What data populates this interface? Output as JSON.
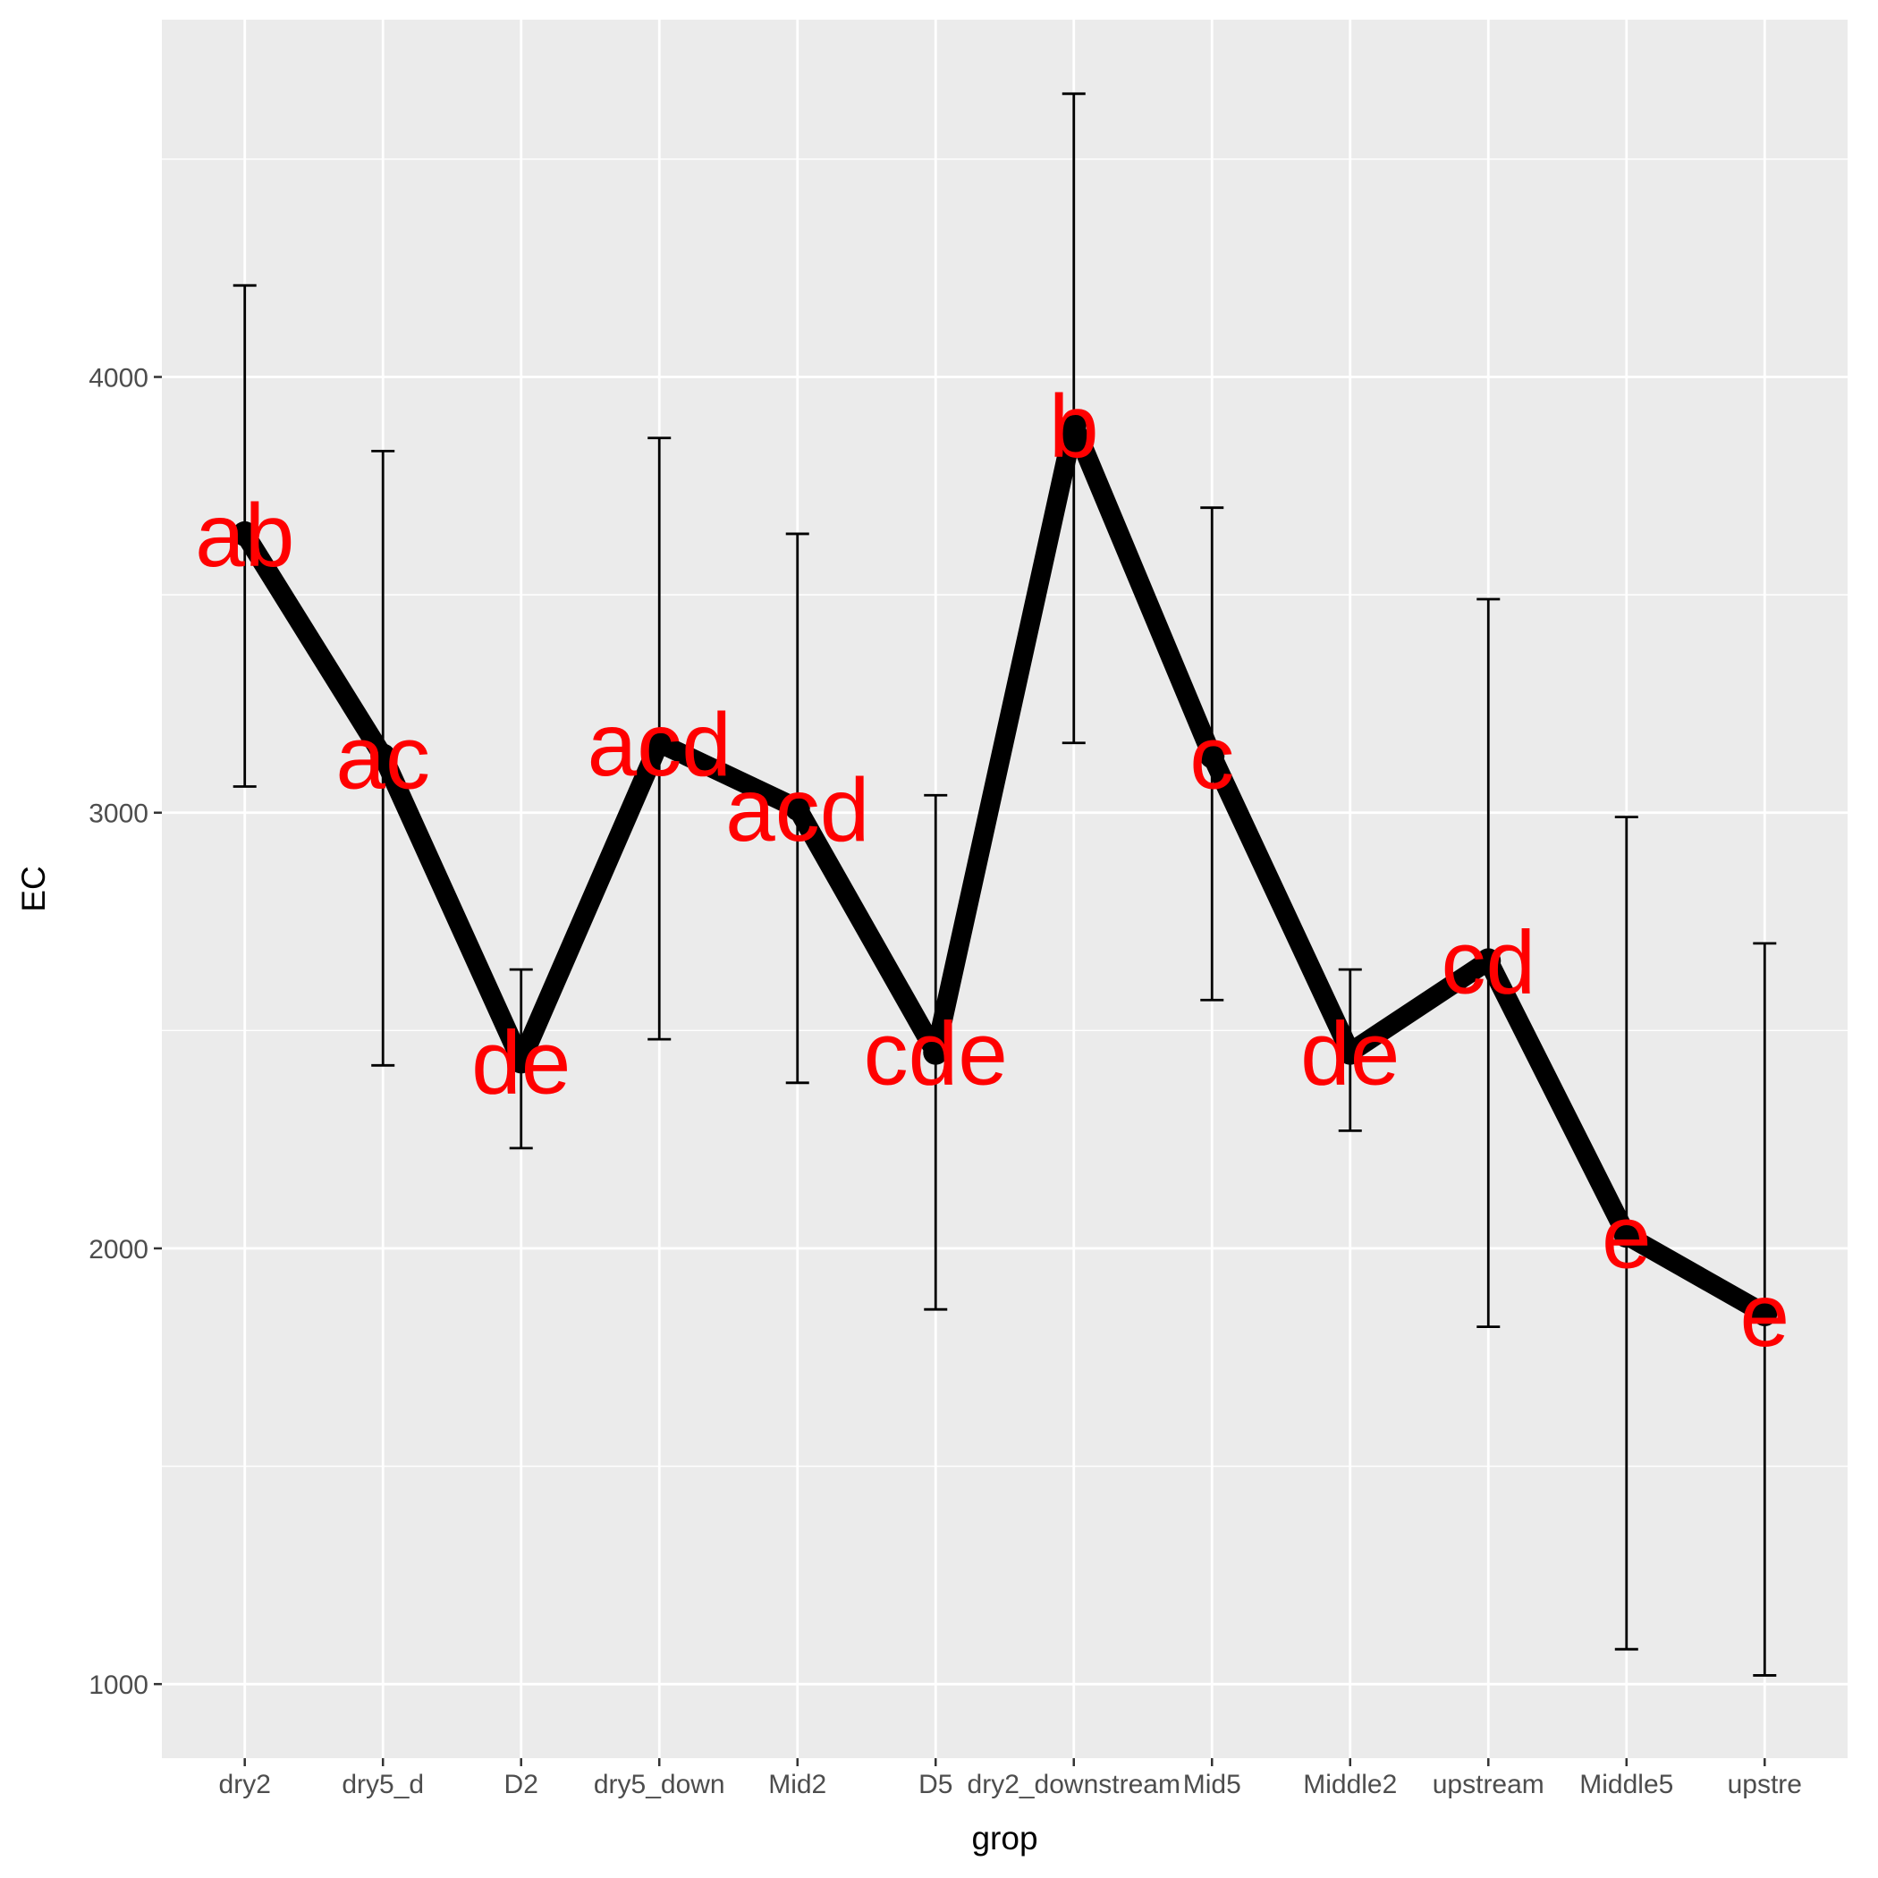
{
  "chart_data": {
    "type": "line",
    "title": "",
    "xlabel": "grop",
    "ylabel": "EC",
    "categories": [
      "dry2",
      "dry5_d",
      "D2",
      "dry5_down",
      "Mid2",
      "D5",
      "dry2_downstream",
      "Mid5",
      "Middle2",
      "upstream",
      "Middle5",
      "upstre"
    ],
    "series": [
      {
        "values": [
          3640,
          3130,
          2430,
          3160,
          3010,
          2450,
          3890,
          3130,
          2450,
          2660,
          2030,
          1850
        ],
        "error_low": [
          3060,
          2420,
          2230,
          2480,
          2380,
          1860,
          3160,
          2570,
          2270,
          1820,
          1080,
          1020
        ],
        "error_high": [
          4210,
          3830,
          2640,
          3860,
          3640,
          3040,
          4650,
          3700,
          2640,
          3490,
          2990,
          2700
        ],
        "labels": [
          "ab",
          "ac",
          "de",
          "acd",
          "acd",
          "cde",
          "b",
          "c",
          "de",
          "cd",
          "e",
          "e"
        ]
      }
    ],
    "ylim": [
      830,
      4820
    ],
    "yticks": [
      1000,
      2000,
      3000,
      4000
    ],
    "ytick_labels": [
      "1000",
      "2000",
      "3000",
      "4000"
    ],
    "grid": true,
    "colors": {
      "panel": "#ebebeb",
      "grid": "#ffffff",
      "line": "#000000",
      "label": "#ff0000"
    }
  }
}
